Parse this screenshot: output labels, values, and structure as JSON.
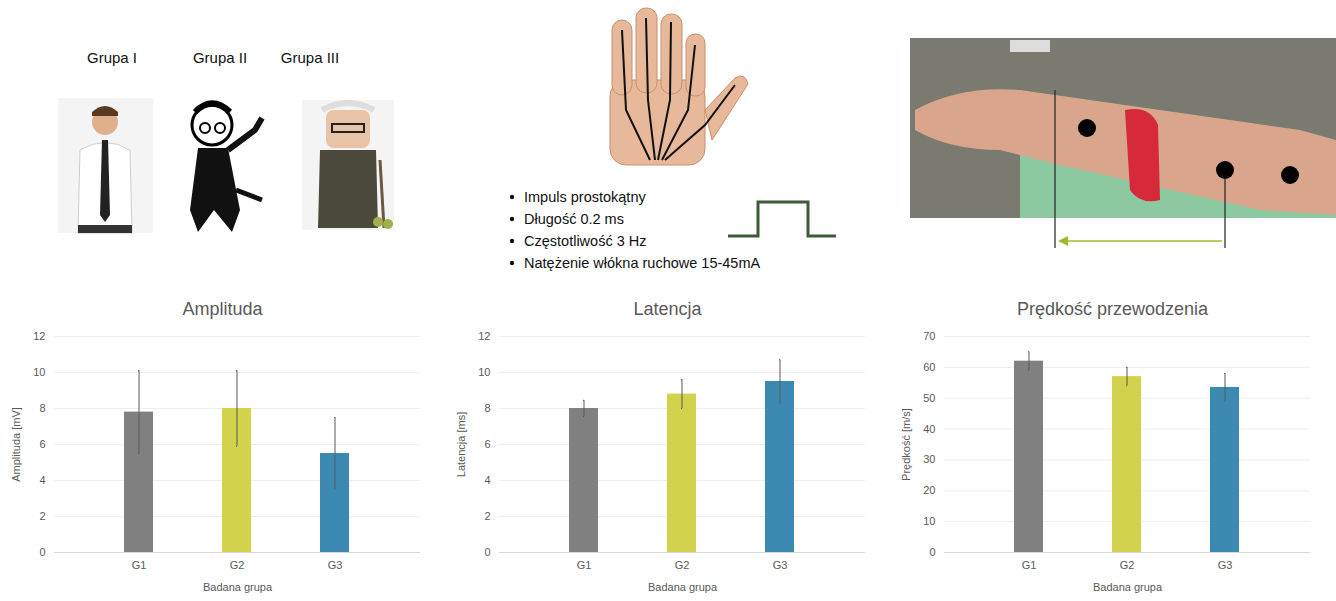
{
  "groups": [
    "Grupa I",
    "Grupa II",
    "Grupa III"
  ],
  "stimulus": [
    "Impuls prostokątny",
    "Długość 0.2 ms",
    "Częstotliwość 3 Hz",
    "Natężenie włókna ruchowe 15-45mA"
  ],
  "chart_data": [
    {
      "type": "bar",
      "title": "Amplituda",
      "xlabel": "Badana grupa",
      "ylabel": "Amplituda [mV]",
      "categories": [
        "G1",
        "G2",
        "G3"
      ],
      "values": [
        7.8,
        8.0,
        5.5
      ],
      "errors": [
        2.3,
        2.1,
        2.0
      ],
      "colors": [
        "#808080",
        "#d2d24c",
        "#3c8ab2"
      ],
      "ylim": [
        0,
        12
      ],
      "yticks": [
        0,
        2,
        4,
        6,
        8,
        10,
        12
      ],
      "grid": true
    },
    {
      "type": "bar",
      "title": "Latencja",
      "xlabel": "Badana grupa",
      "ylabel": "Latencja [ms]",
      "categories": [
        "G1",
        "G2",
        "G3"
      ],
      "values": [
        8.0,
        8.8,
        9.5
      ],
      "errors": [
        0.45,
        0.8,
        1.2
      ],
      "colors": [
        "#808080",
        "#d2d24c",
        "#3c8ab2"
      ],
      "ylim": [
        0,
        12
      ],
      "yticks": [
        0,
        2,
        4,
        6,
        8,
        10,
        12
      ],
      "grid": true
    },
    {
      "type": "bar",
      "title": "Prędkość przewodzenia",
      "xlabel": "Badana grupa",
      "ylabel": "Prędkość [m/s]",
      "categories": [
        "G1",
        "G2",
        "G3"
      ],
      "values": [
        62,
        57,
        53.5
      ],
      "errors": [
        3,
        3,
        4.5
      ],
      "colors": [
        "#808080",
        "#d2d24c",
        "#3c8ab2"
      ],
      "ylim": [
        0,
        70
      ],
      "yticks": [
        0,
        10,
        20,
        30,
        40,
        50,
        60,
        70
      ],
      "grid": true
    }
  ]
}
